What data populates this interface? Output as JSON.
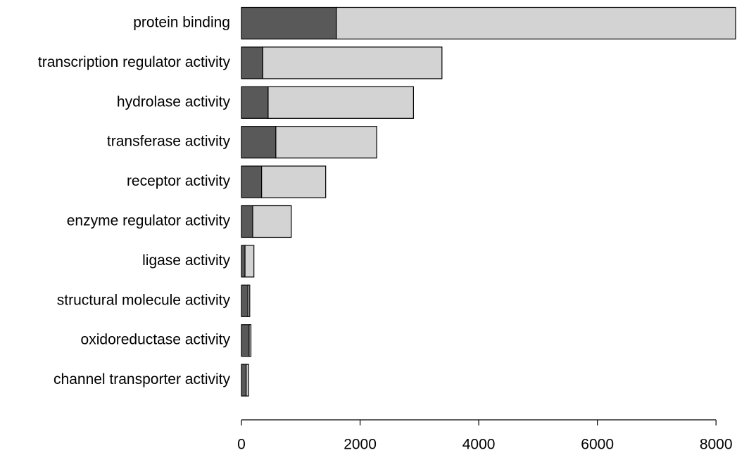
{
  "chart_data": {
    "type": "stacked-barh",
    "categories": [
      "protein binding",
      "transcription regulator activity",
      "hydrolase activity",
      "transferase activity",
      "receptor activity",
      "enzyme regulator activity",
      "ligase activity",
      "structural molecule activity",
      "oxidoreductase activity",
      "channel transporter activity"
    ],
    "series": [
      {
        "color": "#595959",
        "values": [
          1600,
          360,
          450,
          580,
          340,
          190,
          60,
          110,
          130,
          80
        ]
      },
      {
        "color": "#d3d3d3",
        "values": [
          6730,
          3020,
          2450,
          1700,
          1080,
          650,
          150,
          30,
          30,
          40
        ]
      }
    ],
    "xlim": [
      0,
      8330
    ],
    "xticks": [
      0,
      2000,
      4000,
      6000,
      8000
    ]
  }
}
